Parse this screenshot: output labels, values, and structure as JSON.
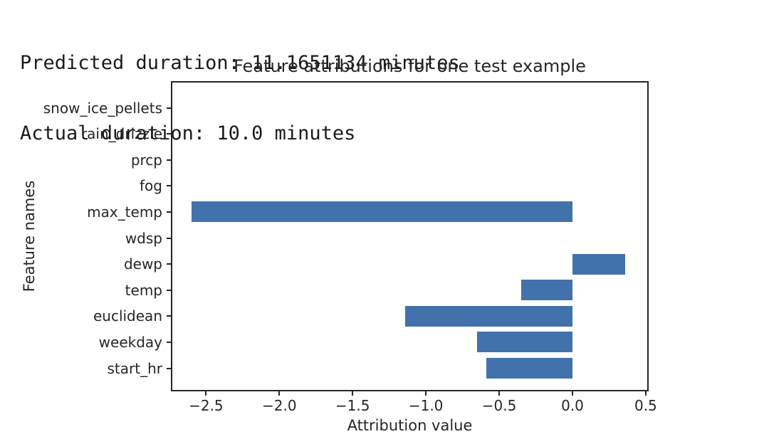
{
  "header": {
    "line1": "Predicted duration: 11.1651134 minutes",
    "line2": "Actual duration: 10.0 minutes"
  },
  "chart_data": {
    "type": "bar",
    "orientation": "horizontal",
    "title": "Feature attributions for one test example",
    "xlabel": "Attribution value",
    "ylabel": "Feature names",
    "categories": [
      "snow_ice_pellets",
      "rain_drizzle",
      "prcp",
      "fog",
      "max_temp",
      "wdsp",
      "dewp",
      "temp",
      "euclidean",
      "weekday",
      "start_hr"
    ],
    "values": [
      0,
      0,
      0,
      0,
      -2.6,
      0,
      0.36,
      -0.35,
      -1.14,
      -0.65,
      -0.59
    ],
    "xlim": [
      -2.74,
      0.52
    ],
    "xticks": [
      -2.5,
      -2.0,
      -1.5,
      -1.0,
      -0.5,
      0.0,
      0.5
    ],
    "grid": false,
    "bar_color": "#4272ab",
    "text_color": "#262626"
  }
}
